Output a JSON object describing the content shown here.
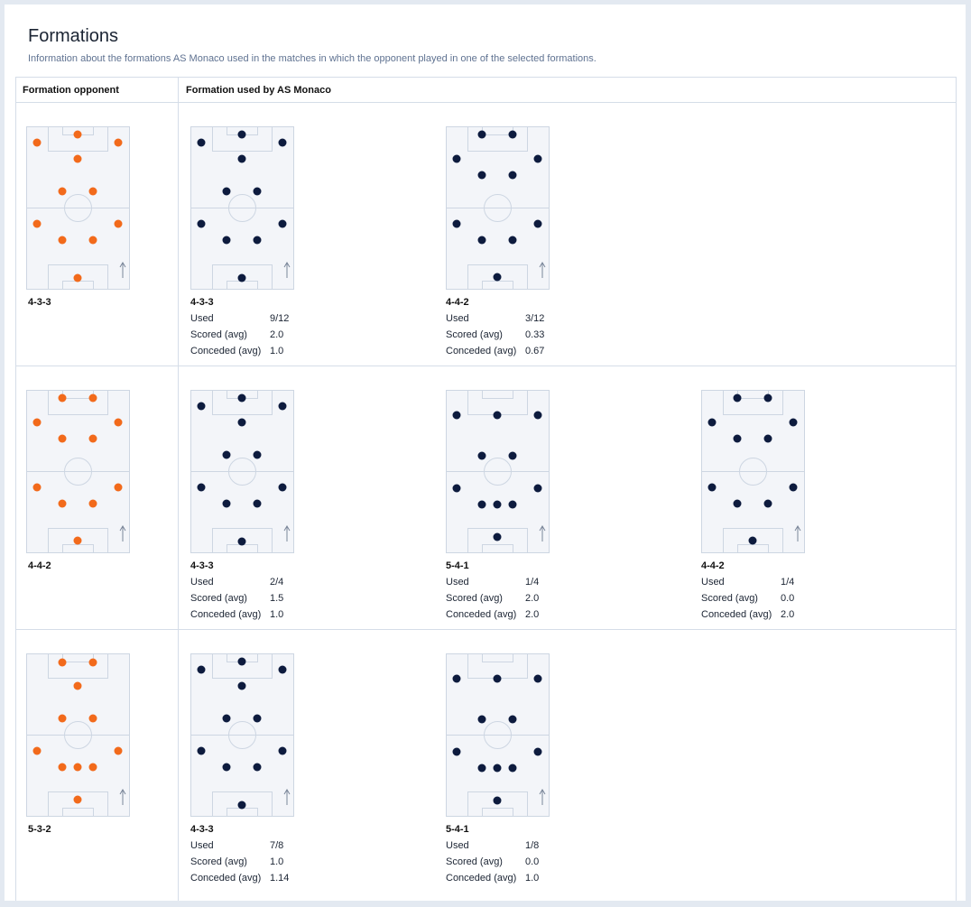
{
  "header": {
    "title": "Formations",
    "subtitle": "Information about the formations AS Monaco used in the matches in which the opponent played in one of the selected formations."
  },
  "table": {
    "columns": [
      "Formation opponent",
      "Formation used by AS Monaco"
    ],
    "rows": [
      {
        "opponent": "4-3-3",
        "used": [
          {
            "formation": "4-3-3",
            "stats": [
              [
                "Used",
                "9/12"
              ],
              [
                "Scored (avg)",
                "2.0"
              ],
              [
                "Conceded (avg)",
                "1.0"
              ]
            ]
          },
          {
            "formation": "4-4-2",
            "stats": [
              [
                "Used",
                "3/12"
              ],
              [
                "Scored (avg)",
                "0.33"
              ],
              [
                "Conceded (avg)",
                "0.67"
              ]
            ]
          }
        ]
      },
      {
        "opponent": "4-4-2",
        "used": [
          {
            "formation": "4-3-3",
            "stats": [
              [
                "Used",
                "2/4"
              ],
              [
                "Scored (avg)",
                "1.5"
              ],
              [
                "Conceded (avg)",
                "1.0"
              ]
            ]
          },
          {
            "formation": "5-4-1",
            "stats": [
              [
                "Used",
                "1/4"
              ],
              [
                "Scored (avg)",
                "2.0"
              ],
              [
                "Conceded (avg)",
                "2.0"
              ]
            ]
          },
          {
            "formation": "4-4-2",
            "stats": [
              [
                "Used",
                "1/4"
              ],
              [
                "Scored (avg)",
                "0.0"
              ],
              [
                "Conceded (avg)",
                "2.0"
              ]
            ]
          }
        ]
      },
      {
        "opponent": "5-3-2",
        "used": [
          {
            "formation": "4-3-3",
            "stats": [
              [
                "Used",
                "7/8"
              ],
              [
                "Scored (avg)",
                "1.0"
              ],
              [
                "Conceded (avg)",
                "1.14"
              ]
            ]
          },
          {
            "formation": "5-4-1",
            "stats": [
              [
                "Used",
                "1/8"
              ],
              [
                "Scored (avg)",
                "0.0"
              ],
              [
                "Conceded (avg)",
                "1.0"
              ]
            ]
          }
        ]
      }
    ]
  }
}
